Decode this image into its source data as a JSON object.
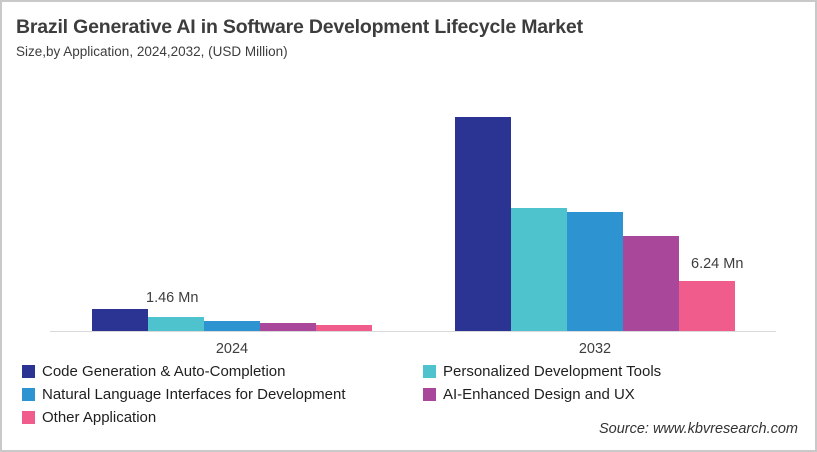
{
  "header": {
    "title": "Brazil Generative AI in Software Development Lifecycle Market",
    "subtitle": "Size,by Application, 2024,2032, (USD Million)"
  },
  "chart_data": {
    "type": "bar",
    "title": "Brazil Generative AI in Software Development Lifecycle Market Size, by Application, 2024, 2032, (USD Million)",
    "categories": [
      "2024",
      "2032"
    ],
    "unit": "USD Million",
    "xlabel": "",
    "ylabel": "",
    "ylim": [
      0,
      28
    ],
    "grid": false,
    "y_axis_visible": false,
    "legend_position": "bottom-left",
    "series": [
      {
        "name": "Code Generation & Auto-Completion",
        "color": "#2B3492",
        "values": [
          1.46,
          26.7
        ]
      },
      {
        "name": "Personalized Development Tools",
        "color": "#4EC3CE",
        "values": [
          0.93,
          15.4
        ]
      },
      {
        "name": "Natural Language Interfaces for Development",
        "color": "#2E93D1",
        "values": [
          0.7,
          14.9
        ]
      },
      {
        "name": "AI-Enhanced Design and UX",
        "color": "#A9479B",
        "values": [
          0.56,
          11.9
        ]
      },
      {
        "name": "Other Application",
        "color": "#F05C8C",
        "values": [
          0.37,
          6.24
        ]
      }
    ],
    "annotations": [
      {
        "text": "1.46 Mn",
        "category": "2024",
        "series": "Code Generation & Auto-Completion"
      },
      {
        "text": "6.24 Mn",
        "category": "2032",
        "series": "Other Application"
      }
    ],
    "colors": {
      "axis_line": "#D9D9D9",
      "text": "#3D3D3D",
      "legend_text": "#1F1F1F"
    }
  },
  "source": {
    "label": "Source: www.kbvresearch.com"
  }
}
